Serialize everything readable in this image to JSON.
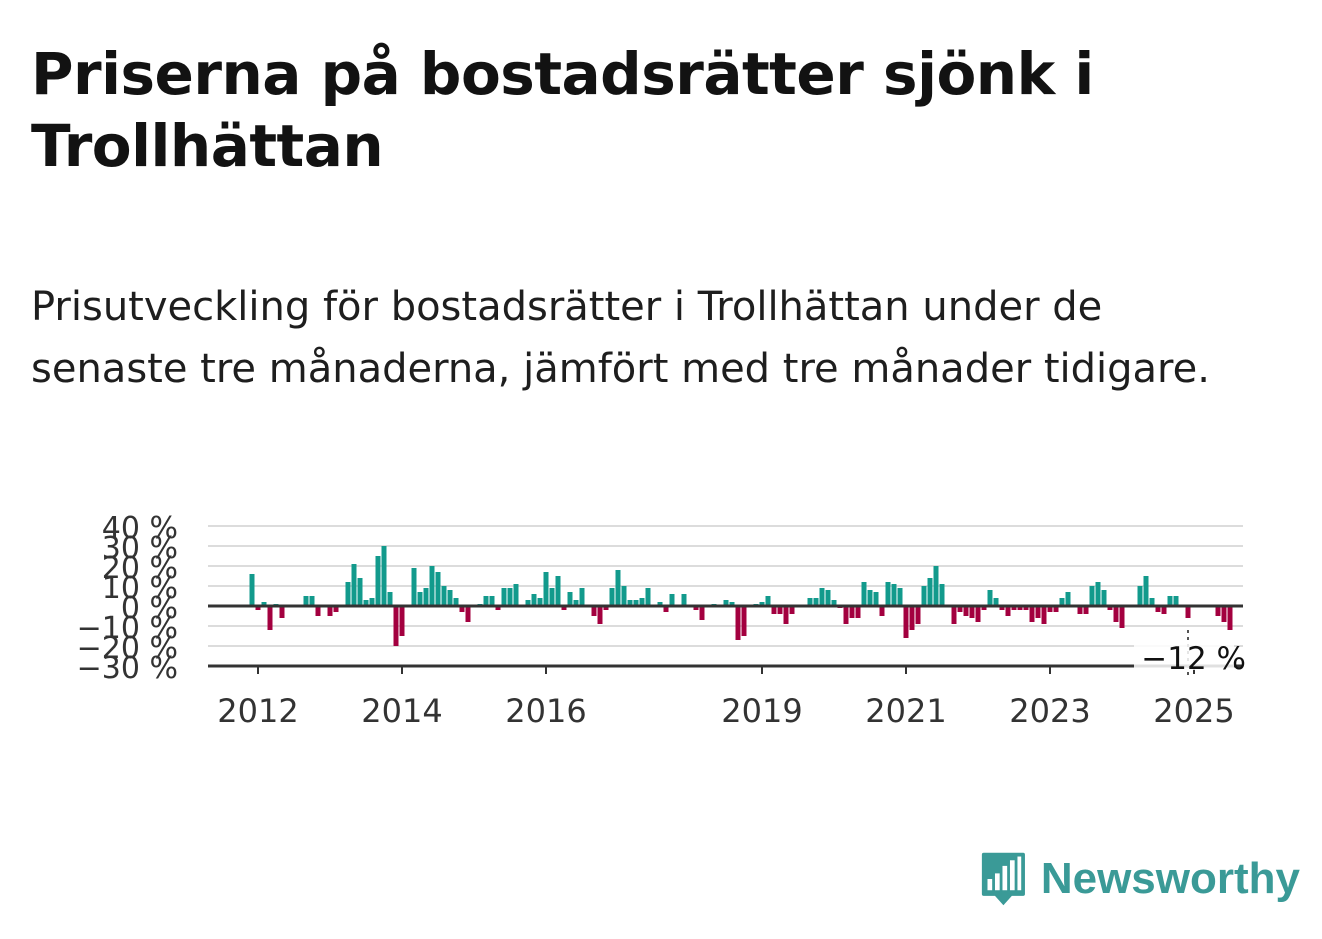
{
  "title": "Priserna på bostadsrätter sjönk i Trollhättan",
  "subtitle": "Prisutveckling för bostadsrätter i Trollhättan under de senaste tre månaderna, jämfört med tre månader tidigare.",
  "brand": {
    "name": "Newsworthy",
    "icon": "newsworthy-logo-icon",
    "color": "#3a9a97"
  },
  "colors": {
    "positive": "#129a8c",
    "negative": "#a3003f",
    "grid": "#dcdcdc",
    "axis": "#333333"
  },
  "chart_data": {
    "type": "bar",
    "title": "",
    "xlabel": "",
    "ylabel": "",
    "ylim": [
      -30,
      40
    ],
    "yticks": [
      40,
      30,
      20,
      10,
      0,
      -10,
      -20,
      -30
    ],
    "ytick_labels": [
      "40 %",
      "30 %",
      "20 %",
      "10 %",
      "0 %",
      "−10 %",
      "−20 %",
      "−30 %"
    ],
    "xticks": [
      {
        "year": 2012,
        "label": "2012"
      },
      {
        "year": 2014,
        "label": "2014"
      },
      {
        "year": 2016,
        "label": "2016"
      },
      {
        "year": 2019,
        "label": "2019"
      },
      {
        "year": 2021,
        "label": "2021"
      },
      {
        "year": 2023,
        "label": "2023"
      },
      {
        "year": 2025,
        "label": "2025"
      }
    ],
    "x_start": "2011-11",
    "grid": true,
    "annotation": {
      "label": "−12 %",
      "value": -12,
      "date": "2024-12"
    },
    "series": [
      {
        "values": [
          0,
          16,
          -2,
          2,
          -12,
          1,
          -6,
          0,
          0,
          0,
          5,
          5,
          -5,
          0,
          -5,
          -3,
          0,
          12,
          21,
          14,
          3,
          4,
          25,
          30,
          7,
          -20,
          -15,
          0,
          19,
          7,
          9,
          20,
          17,
          10,
          8,
          4,
          -3,
          -8,
          0,
          1,
          5,
          5,
          -2,
          9,
          9,
          11,
          0,
          3,
          6,
          4,
          17,
          9,
          15,
          -2,
          7,
          3,
          9,
          0,
          -5,
          -9,
          -2,
          9,
          18,
          10,
          3,
          3,
          4,
          9,
          0,
          2,
          -3,
          6,
          0,
          6,
          0,
          -2,
          -7,
          0,
          1,
          0,
          3,
          2,
          -17,
          -15,
          0,
          1,
          2,
          5,
          -4,
          -4,
          -9,
          -4,
          0,
          0,
          4,
          4,
          9,
          8,
          3,
          -1,
          -9,
          -6,
          -6,
          12,
          8,
          7,
          -5,
          12,
          11,
          9,
          -16,
          -12,
          -9,
          10,
          14,
          20,
          11,
          0,
          -9,
          -3,
          -5,
          -6,
          -8,
          -2,
          8,
          4,
          -2,
          -5,
          -2,
          -2,
          -2,
          -8,
          -6,
          -9,
          -3,
          -3,
          4,
          7,
          0,
          -4,
          -4,
          10,
          12,
          8,
          -2,
          -8,
          -11,
          0,
          0,
          10,
          15,
          4,
          -3,
          -4,
          5,
          5,
          0,
          -6,
          0,
          0,
          0,
          0,
          -5,
          -8,
          -12
        ]
      }
    ]
  }
}
